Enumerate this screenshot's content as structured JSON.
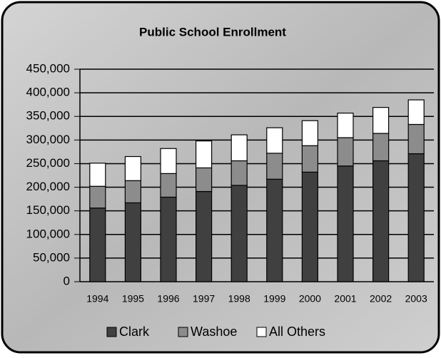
{
  "chart_data": {
    "type": "stacked-bar",
    "title": "Public School Enrollment",
    "categories": [
      "1994",
      "1995",
      "1996",
      "1997",
      "1998",
      "1999",
      "2000",
      "2001",
      "2002",
      "2003"
    ],
    "series": [
      {
        "name": "Clark",
        "color": "#404040",
        "values": [
          156000,
          167000,
          179000,
          191000,
          204000,
          217000,
          232000,
          245000,
          256000,
          271000
        ]
      },
      {
        "name": "Washoe",
        "color": "#8c8c8c",
        "values": [
          46000,
          47000,
          50000,
          50000,
          52000,
          55000,
          56000,
          60000,
          58000,
          62000
        ]
      },
      {
        "name": "All Others",
        "color": "#ffffff",
        "values": [
          49000,
          51000,
          53000,
          57000,
          55000,
          54000,
          53000,
          52000,
          55000,
          52000
        ]
      }
    ],
    "ylim": [
      0,
      450000
    ],
    "yticks": [
      0,
      {
        "value": 50000,
        "label": "50,000"
      },
      {
        "value": 100000,
        "label": "100,000"
      },
      {
        "value": 150000,
        "label": "150,000"
      },
      {
        "value": 200000,
        "label": "200,000"
      },
      {
        "value": 250000,
        "label": "250,000"
      },
      {
        "value": 300000,
        "label": "300,000"
      },
      {
        "value": 350000,
        "label": "350,000"
      },
      {
        "value": 400000,
        "label": "400,000"
      },
      {
        "value": 450000,
        "label": "450,000"
      }
    ],
    "grid": true,
    "legend": "bottom"
  }
}
